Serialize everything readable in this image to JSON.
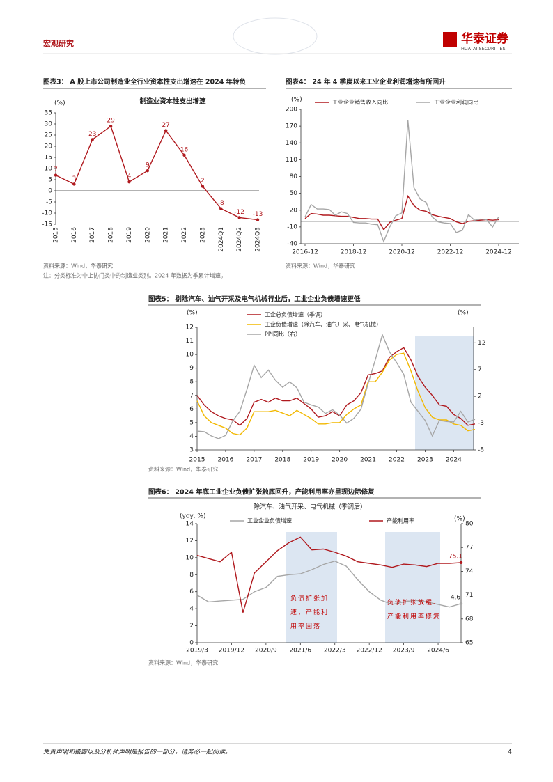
{
  "header": {
    "section": "宏观研究",
    "brand": "华泰证券",
    "brand_en": "HUATAI SECURITIES"
  },
  "figures": [
    {
      "title": "图表3： A 股上市公司制造业全行业资本性支出增速在 2024 年转负",
      "source": "资料来源：Wind，华泰研究",
      "note": "注：分类标准为中上协门类中的制造业类别。2024 年数据为季累计增速。",
      "chart": {
        "type": "line",
        "title": "制造业资本性支出增速",
        "y_unit": "(%)",
        "categories": [
          "2015",
          "2016",
          "2017",
          "2018",
          "2019",
          "2020",
          "2021",
          "2022",
          "2023",
          "2024Q1",
          "2024Q2",
          "2024Q3"
        ],
        "series": [
          {
            "color": "#b0191e",
            "values": [
              7,
              3,
              23,
              29,
              4,
              9,
              27,
              16,
              2,
              -8,
              -12,
              -13
            ]
          }
        ],
        "data_labels": "all",
        "markers": true,
        "ylim": [
          -15,
          35
        ],
        "yticks": [
          -15,
          -10,
          -5,
          0,
          5,
          10,
          15,
          20,
          25,
          30,
          35
        ]
      }
    },
    {
      "title": "图表4： 24 年 4 季度以来工业企业利润增速有所回升",
      "source": "资料来源：Wind，华泰研究",
      "chart": {
        "type": "line",
        "y_unit": "(%)",
        "x": [
          "2016-12",
          "2017-03",
          "2017-06",
          "2017-09",
          "2017-12",
          "2018-03",
          "2018-06",
          "2018-09",
          "2018-12",
          "2019-03",
          "2019-06",
          "2019-09",
          "2019-12",
          "2020-03",
          "2020-06",
          "2020-09",
          "2020-12",
          "2021-03",
          "2021-06",
          "2021-09",
          "2021-12",
          "2022-03",
          "2022-06",
          "2022-09",
          "2022-12",
          "2023-03",
          "2023-06",
          "2023-09",
          "2023-12",
          "2024-03",
          "2024-06",
          "2024-09",
          "2024-12"
        ],
        "xticks": [
          "2016-12",
          "2018-12",
          "2020-12",
          "2022-12",
          "2024-12"
        ],
        "series": [
          {
            "name": "工业企业销售收入同比",
            "color": "#b0191e",
            "values": [
              5,
              14,
              13,
              11,
              11,
              10,
              9,
              9,
              7,
              5,
              5,
              4,
              4,
              -15,
              -2,
              2,
              5,
              45,
              28,
              20,
              18,
              12,
              9,
              7,
              5,
              -1,
              -4,
              0,
              1,
              2,
              3,
              2,
              3
            ]
          },
          {
            "name": "工业企业利润同比",
            "color": "#a6a6a6",
            "values": [
              8,
              30,
              22,
              22,
              21,
              11,
              17,
              14,
              -2,
              -3,
              -3,
              -5,
              -6,
              -36,
              -10,
              10,
              15,
              180,
              60,
              40,
              34,
              8,
              -1,
              -3,
              -4,
              -20,
              -16,
              12,
              2,
              4,
              3,
              -10,
              8
            ]
          }
        ],
        "ylim": [
          -40,
          200
        ],
        "yticks": [
          -40,
          -10,
          20,
          50,
          80,
          110,
          140,
          170,
          200
        ]
      }
    },
    {
      "title": "图表5： 剔除汽车、油气开采及电气机械行业后，工业企业负债增速更低",
      "source": "资料来源：Wind，华泰研究",
      "chart": {
        "type": "line",
        "y_unit": "(%)",
        "y2_unit": "(%)",
        "x": [
          2015,
          2015.25,
          2015.5,
          2015.75,
          2016,
          2016.25,
          2016.5,
          2016.75,
          2017,
          2017.25,
          2017.5,
          2017.75,
          2018,
          2018.25,
          2018.5,
          2018.75,
          2019,
          2019.25,
          2019.5,
          2019.75,
          2020,
          2020.25,
          2020.5,
          2020.75,
          2021,
          2021.25,
          2021.5,
          2021.75,
          2022,
          2022.25,
          2022.5,
          2022.75,
          2023,
          2023.25,
          2023.5,
          2023.75,
          2024,
          2024.25,
          2024.5,
          2024.75
        ],
        "xlim": [
          2015,
          2024.7
        ],
        "xticks": [
          2015,
          2016,
          2017,
          2018,
          2019,
          2020,
          2021,
          2022,
          2023,
          2024
        ],
        "series": [
          {
            "name": "工企总负债增速（季调）",
            "color": "#b0191e",
            "values": [
              7.0,
              6.3,
              5.8,
              5.5,
              5.3,
              5.2,
              4.8,
              5.3,
              6.5,
              6.7,
              6.5,
              6.8,
              6.6,
              6.6,
              6.8,
              6.4,
              6.0,
              5.4,
              5.5,
              5.8,
              5.5,
              6.3,
              6.6,
              7.2,
              8.5,
              8.6,
              8.8,
              9.8,
              10.2,
              10.5,
              9.6,
              8.4,
              7.6,
              7.0,
              6.3,
              6.2,
              5.6,
              5.3,
              4.8,
              4.9
            ]
          },
          {
            "name": "工企负债增速（除汽车、油气开采、电气机械）",
            "color": "#f2b800",
            "values": [
              6.6,
              5.5,
              5.0,
              4.8,
              4.6,
              4.2,
              4.1,
              4.6,
              5.8,
              5.8,
              5.8,
              5.9,
              5.7,
              5.5,
              5.9,
              5.6,
              5.3,
              4.9,
              4.9,
              5.0,
              5.0,
              5.6,
              6.0,
              6.3,
              8.0,
              8.0,
              8.7,
              9.6,
              10.0,
              10.1,
              8.8,
              7.3,
              6.1,
              5.4,
              5.2,
              5.2,
              4.9,
              4.8,
              4.4,
              4.5
            ]
          },
          {
            "name": "PPI同比（右）",
            "color": "#a6a6a6",
            "axis": "y2",
            "values": [
              -4.5,
              -4.6,
              -5.4,
              -5.9,
              -5.3,
              -2.6,
              -0.8,
              3.3,
              7.8,
              5.5,
              6.9,
              5.0,
              3.7,
              4.7,
              3.6,
              0.9,
              0.4,
              0.0,
              -1.2,
              -0.5,
              -1.5,
              -3.0,
              -2.1,
              -0.4,
              4.4,
              8.8,
              13.5,
              10.3,
              8.3,
              6.1,
              0.9,
              -0.8,
              -2.5,
              -5.4,
              -2.5,
              -2.7,
              -2.8,
              -0.8,
              -2.8,
              -2.3
            ]
          }
        ],
        "ylim": [
          3,
          12
        ],
        "yticks": [
          3,
          4,
          5,
          6,
          7,
          8,
          9,
          10,
          11,
          12
        ],
        "y2lim": [
          -8,
          14.9
        ],
        "y2ticks": [
          -8,
          -3,
          2,
          7,
          12
        ]
      }
    },
    {
      "title": "图表6： 2024 年底工业企业负债扩张触底回升，产能利用率亦呈现边际修复",
      "source": "资料来源：Wind，华泰研究",
      "chart": {
        "type": "line",
        "subtitle": "除汽车、油气开采、电气机械（季调后）",
        "y_unit": "(yoy, %)",
        "y2_unit": "(%)",
        "categories": [
          "2019/3",
          null,
          null,
          "2019/12",
          null,
          null,
          "2020/9",
          null,
          null,
          "2021/6",
          null,
          null,
          "2022/3",
          null,
          null,
          "2022/12",
          null,
          null,
          "2023/9",
          null,
          null,
          "2024/6",
          null,
          null
        ],
        "series": [
          {
            "name": "工业企业负债增速",
            "color": "#a6a6a6",
            "values": [
              5.6,
              4.8,
              4.9,
              5.0,
              5.1,
              6.0,
              6.5,
              7.8,
              8.0,
              8.1,
              8.6,
              9.2,
              9.6,
              9.0,
              7.4,
              6.0,
              5.0,
              4.5,
              4.8,
              5.0,
              4.8,
              4.5,
              4.2,
              4.6
            ]
          },
          {
            "name": "产能利用率",
            "color": "#b0191e",
            "axis": "y2",
            "values": [
              76.0,
              75.6,
              75.2,
              76.4,
              68.8,
              73.8,
              75.2,
              76.6,
              77.6,
              78.3,
              76.7,
              76.8,
              76.4,
              75.9,
              75.2,
              75.0,
              74.8,
              74.5,
              74.9,
              74.8,
              74.6,
              75.0,
              75.0,
              75.1
            ]
          }
        ],
        "data_labels": "last",
        "annotations": [
          "负债扩张加速、产能利用率回落",
          "负债扩张放缓、产能利用率修复"
        ],
        "ylim": [
          0,
          14
        ],
        "yticks": [
          0,
          2,
          4,
          6,
          8,
          10,
          12,
          14
        ],
        "y2lim": [
          65,
          80
        ],
        "y2ticks": [
          65,
          68,
          71,
          74,
          77,
          80
        ]
      }
    }
  ],
  "footer": {
    "disclaimer": "免责声明和披露以及分析师声明是报告的一部分，请务必一起阅读。",
    "page": 4
  }
}
